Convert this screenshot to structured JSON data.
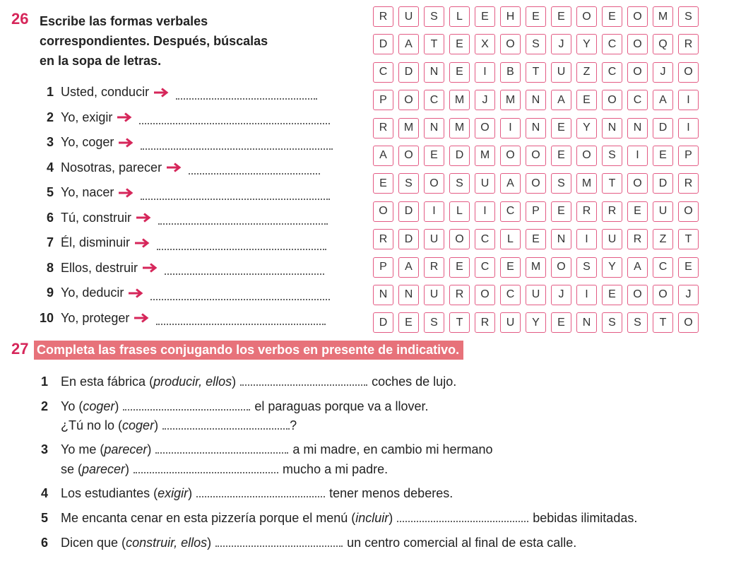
{
  "ex26": {
    "number": "26",
    "instruction": "Escribe las formas verbales\ncorrespondientes. Después, búscalas\nen la sopa de letras.",
    "items": [
      {
        "n": "1",
        "label": "Usted, conducir"
      },
      {
        "n": "2",
        "label": "Yo, exigir"
      },
      {
        "n": "3",
        "label": "Yo, coger"
      },
      {
        "n": "4",
        "label": "Nosotras, parecer"
      },
      {
        "n": "5",
        "label": "Yo, nacer"
      },
      {
        "n": "6",
        "label": "Tú, construir"
      },
      {
        "n": "7",
        "label": "Él, disminuir"
      },
      {
        "n": "8",
        "label": "Ellos, destruir"
      },
      {
        "n": "9",
        "label": "Yo, deducir"
      },
      {
        "n": "10",
        "label": "Yo, proteger"
      }
    ],
    "word_search": [
      [
        "R",
        "U",
        "S",
        "L",
        "E",
        "H",
        "E",
        "E",
        "O",
        "E",
        "O",
        "M",
        "S"
      ],
      [
        "D",
        "A",
        "T",
        "E",
        "X",
        "O",
        "S",
        "J",
        "Y",
        "C",
        "O",
        "Q",
        "R"
      ],
      [
        "C",
        "D",
        "N",
        "E",
        "I",
        "B",
        "T",
        "U",
        "Z",
        "C",
        "O",
        "J",
        "O"
      ],
      [
        "P",
        "O",
        "C",
        "M",
        "J",
        "M",
        "N",
        "A",
        "E",
        "O",
        "C",
        "A",
        "I"
      ],
      [
        "R",
        "M",
        "N",
        "M",
        "O",
        "I",
        "N",
        "E",
        "Y",
        "N",
        "N",
        "D",
        "I"
      ],
      [
        "A",
        "O",
        "E",
        "D",
        "M",
        "O",
        "O",
        "E",
        "O",
        "S",
        "I",
        "E",
        "P"
      ],
      [
        "E",
        "S",
        "O",
        "S",
        "U",
        "A",
        "O",
        "S",
        "M",
        "T",
        "O",
        "D",
        "R"
      ],
      [
        "O",
        "D",
        "I",
        "L",
        "I",
        "C",
        "P",
        "E",
        "R",
        "R",
        "E",
        "U",
        "O"
      ],
      [
        "R",
        "D",
        "U",
        "O",
        "C",
        "L",
        "E",
        "N",
        "I",
        "U",
        "R",
        "Z",
        "T"
      ],
      [
        "P",
        "A",
        "R",
        "E",
        "C",
        "E",
        "M",
        "O",
        "S",
        "Y",
        "A",
        "C",
        "E"
      ],
      [
        "N",
        "N",
        "U",
        "R",
        "O",
        "C",
        "U",
        "J",
        "I",
        "E",
        "O",
        "O",
        "J"
      ],
      [
        "D",
        "E",
        "S",
        "T",
        "R",
        "U",
        "Y",
        "E",
        "N",
        "S",
        "S",
        "T",
        "O"
      ]
    ]
  },
  "ex27": {
    "number": "27",
    "instruction": "Completa las frases conjugando los verbos en presente de indicativo.",
    "s1": {
      "n": "1",
      "a": "En esta fábrica (",
      "v": "producir, ellos",
      "b": ")",
      "c": "coches de lujo."
    },
    "s2": {
      "n": "2",
      "a": "Yo (",
      "v": "coger",
      "b": ")",
      "c": "el paraguas porque va a llover."
    },
    "s2b": {
      "a": "¿Tú no lo (",
      "v": "coger",
      "b": ")",
      "c": "?"
    },
    "s3": {
      "n": "3",
      "a": "Yo me (",
      "v": "parecer",
      "b": ")",
      "c": "a mi madre, en cambio mi hermano"
    },
    "s3b": {
      "a": "se (",
      "v": "parecer",
      "b": ")",
      "c": "mucho a mi padre."
    },
    "s4": {
      "n": "4",
      "a": "Los estudiantes (",
      "v": "exigir",
      "b": ")",
      "c": "tener menos deberes."
    },
    "s5": {
      "n": "5",
      "a": "Me encanta cenar en esta pizzería porque el menú (",
      "v": "incluir",
      "b": ")",
      "c": "bebidas ilimitadas."
    },
    "s6": {
      "n": "6",
      "a": "Dicen que (",
      "v": "construir, ellos",
      "b": ")",
      "c": "un centro comercial al final de esta calle."
    }
  },
  "colors": {
    "accent": "#d6265a",
    "grid_border": "#e35b84",
    "banner": "#e7727a"
  }
}
